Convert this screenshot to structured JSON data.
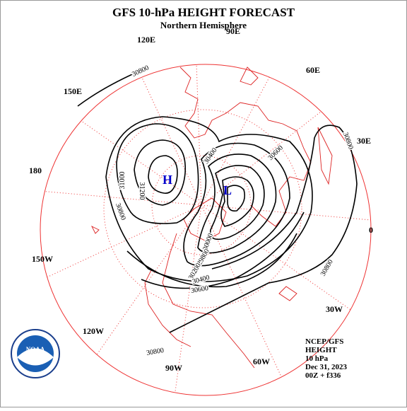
{
  "header": {
    "title": "GFS 10-hPa HEIGHT FORECAST",
    "subtitle": "Northern Hemisphere"
  },
  "longitude_labels": [
    "90E",
    "120E",
    "60E",
    "150E",
    "30E",
    "180",
    "0",
    "150W",
    "30W",
    "120W",
    "60W",
    "90W"
  ],
  "contour_labels": [
    "30800",
    "30800",
    "31000",
    "31200",
    "30800",
    "30400",
    "30600",
    "30800",
    "30000",
    "29800",
    "30200",
    "30400",
    "30600",
    "30800"
  ],
  "centers": [
    "H",
    "L"
  ],
  "info": [
    "NCEP/GFS",
    "HEIGHT",
    "10 hPa",
    "Dec 31, 2023",
    "00Z + f336"
  ],
  "logo": "NOAA"
}
